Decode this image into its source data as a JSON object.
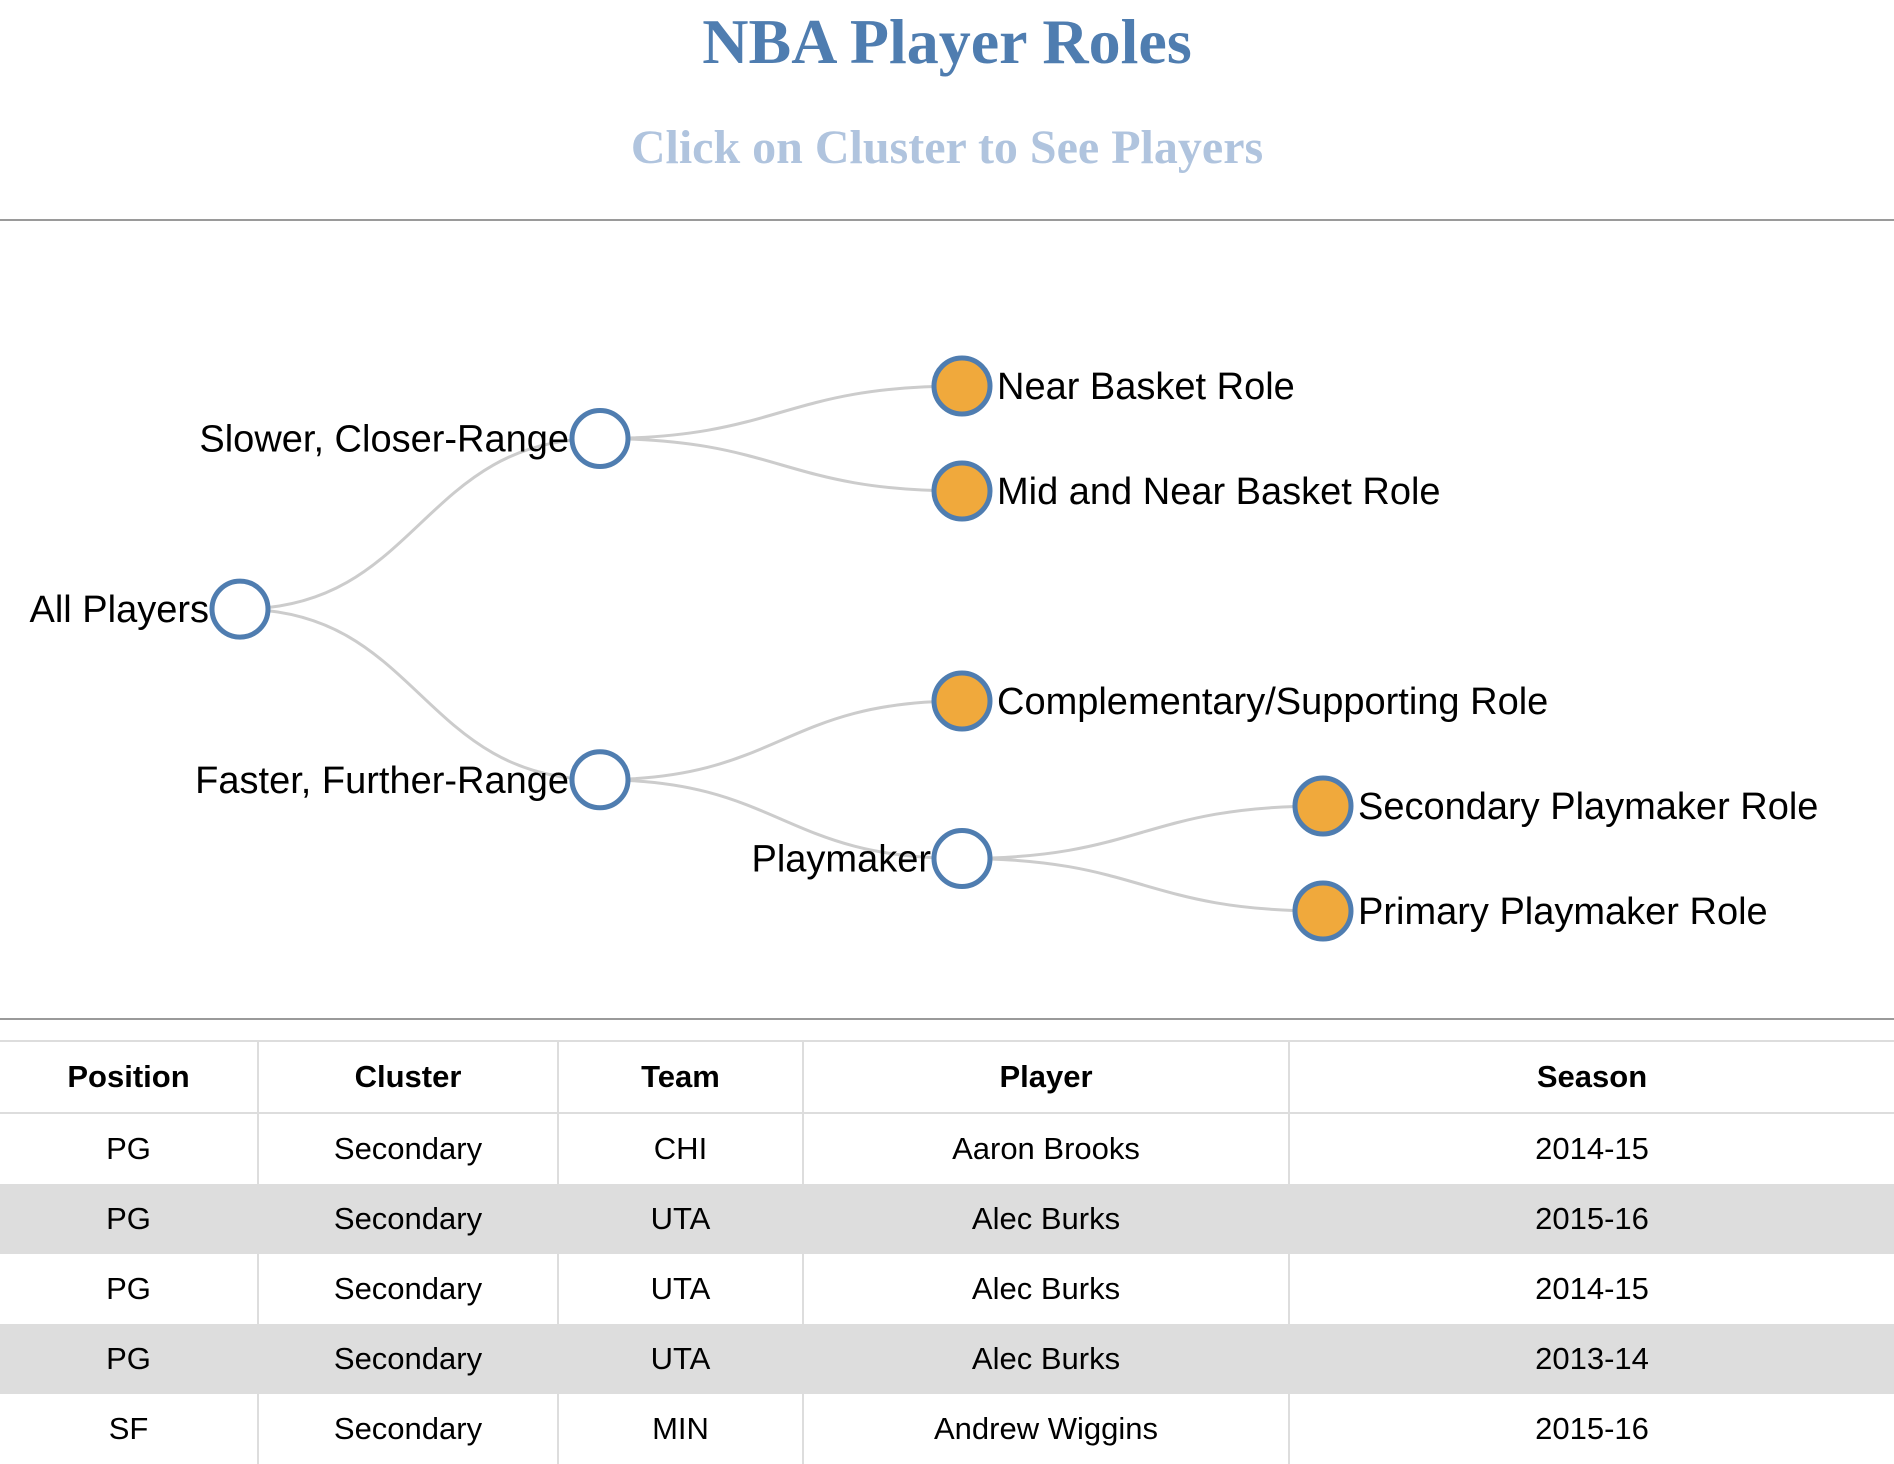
{
  "header": {
    "title": "NBA Player Roles",
    "subtitle": "Click on Cluster to See Players"
  },
  "colors": {
    "title": "#4f7db0",
    "subtitle": "#b0c4de",
    "node_stroke": "#4f7db0",
    "leaf_fill": "#f0a93c",
    "inner_fill": "#ffffff",
    "link": "#cccccc"
  },
  "tree": {
    "name": "All Players",
    "children": [
      {
        "name": "Slower, Closer-Range",
        "children": [
          {
            "name": "Near Basket Role"
          },
          {
            "name": "Mid and Near Basket Role"
          }
        ]
      },
      {
        "name": "Faster, Further-Range",
        "children": [
          {
            "name": "Complementary/Supporting Role"
          },
          {
            "name": "Playmaker",
            "children": [
              {
                "name": "Secondary Playmaker Role"
              },
              {
                "name": "Primary Playmaker Role"
              }
            ]
          }
        ]
      }
    ]
  },
  "table": {
    "columns": [
      "Position",
      "Cluster",
      "Team",
      "Player",
      "Season"
    ],
    "rows": [
      [
        "PG",
        "Secondary",
        "CHI",
        "Aaron Brooks",
        "2014-15"
      ],
      [
        "PG",
        "Secondary",
        "UTA",
        "Alec Burks",
        "2015-16"
      ],
      [
        "PG",
        "Secondary",
        "UTA",
        "Alec Burks",
        "2014-15"
      ],
      [
        "PG",
        "Secondary",
        "UTA",
        "Alec Burks",
        "2013-14"
      ],
      [
        "SF",
        "Secondary",
        "MIN",
        "Andrew Wiggins",
        "2015-16"
      ]
    ]
  }
}
